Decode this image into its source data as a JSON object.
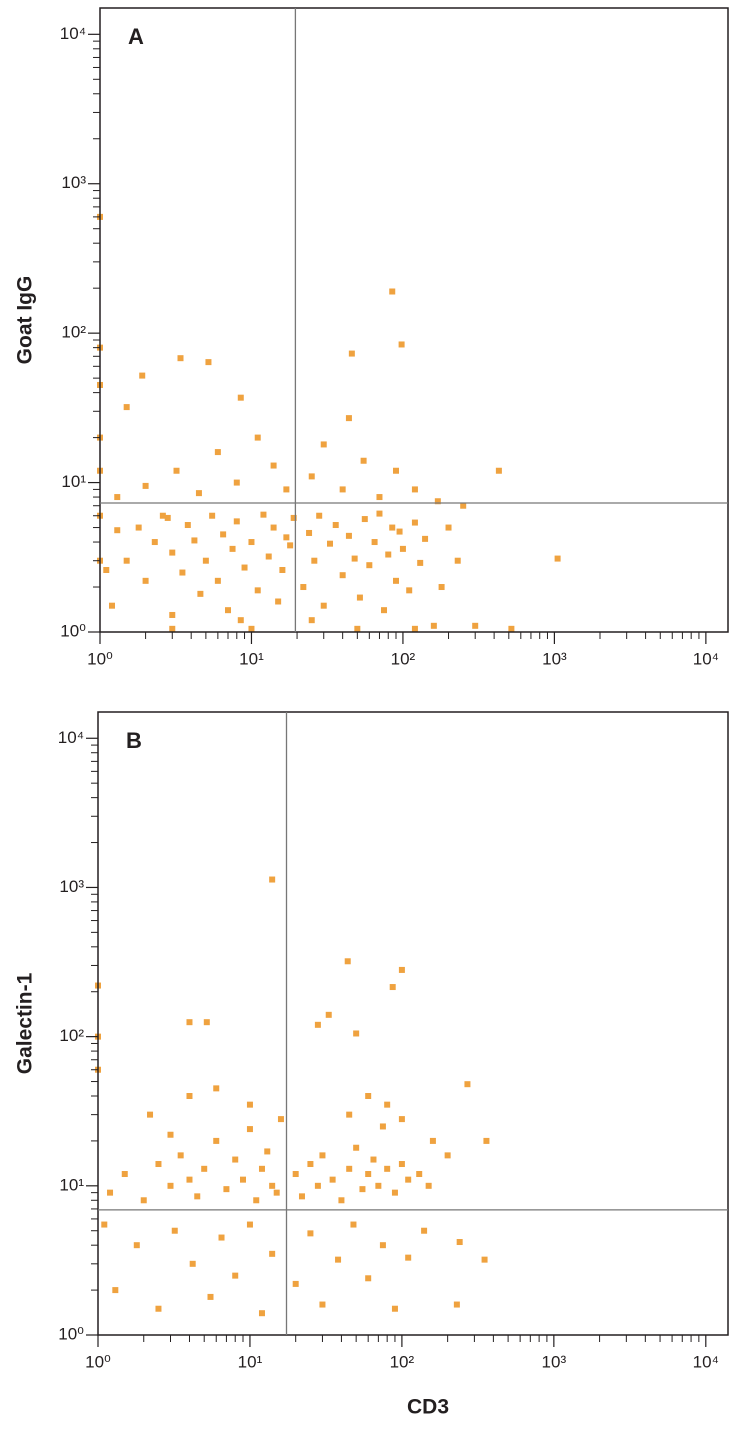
{
  "chart_data": [
    {
      "type": "scatter",
      "panel_label": "A",
      "y_label": "Goat IgG",
      "color": "#efa23f",
      "log_scale": true,
      "xlim": [
        1,
        14000
      ],
      "ylim": [
        1,
        15000
      ],
      "xticks": [
        {
          "value": 1,
          "label": "10⁰"
        },
        {
          "value": 10,
          "label": "10¹"
        },
        {
          "value": 100,
          "label": "10²"
        },
        {
          "value": 1000,
          "label": "10³"
        },
        {
          "value": 10000,
          "label": "10⁴"
        }
      ],
      "yticks": [
        {
          "value": 1,
          "label": "10⁰"
        },
        {
          "value": 10,
          "label": "10¹"
        },
        {
          "value": 100,
          "label": "10²"
        },
        {
          "value": 1000,
          "label": "10³"
        },
        {
          "value": 10000,
          "label": "10⁴"
        }
      ],
      "minor_ticks": [
        2,
        3,
        4,
        5,
        6,
        7,
        8,
        9,
        20,
        30,
        40,
        50,
        60,
        70,
        80,
        90,
        200,
        300,
        400,
        500,
        600,
        700,
        800,
        900,
        2000,
        3000,
        4000,
        5000,
        6000,
        7000,
        8000,
        9000
      ],
      "gates": {
        "x": 19.5,
        "y": 7.3
      },
      "x": [
        1.2,
        1.5,
        1.8,
        2,
        2.3,
        2.6,
        3,
        3,
        3.5,
        3.8,
        4.2,
        4.6,
        5,
        5.5,
        6,
        6.5,
        7,
        7.5,
        8,
        9,
        10,
        11,
        12,
        13,
        14,
        15,
        16,
        17,
        18,
        19,
        22,
        24,
        26,
        28,
        30,
        33,
        36,
        40,
        44,
        48,
        52,
        56,
        60,
        65,
        70,
        75,
        80,
        85,
        90,
        95,
        100,
        110,
        120,
        130,
        140,
        1.1,
        1.3,
        2.8,
        8.5,
        25,
        1.3,
        2,
        3.2,
        4.5,
        6,
        8,
        11,
        14,
        17,
        25,
        30,
        40,
        55,
        70,
        90,
        120,
        170,
        250,
        200,
        230,
        160,
        300,
        180,
        1,
        1,
        1.9,
        3.4,
        5.2,
        8.5,
        44,
        46,
        85,
        98,
        430,
        1050,
        520,
        1.5,
        1,
        3,
        10,
        50,
        120,
        1,
        1,
        1,
        1
      ],
      "y": [
        1.5,
        3,
        5,
        2.2,
        4,
        6,
        1.3,
        3.4,
        2.5,
        5.2,
        4.1,
        1.8,
        3,
        6,
        2.2,
        4.5,
        1.4,
        3.6,
        5.5,
        2.7,
        4,
        1.9,
        6.1,
        3.2,
        5,
        1.6,
        2.6,
        4.3,
        3.8,
        5.8,
        2,
        4.6,
        3,
        6,
        1.5,
        3.9,
        5.2,
        2.4,
        4.4,
        3.1,
        1.7,
        5.7,
        2.8,
        4,
        6.2,
        1.4,
        3.3,
        5,
        2.2,
        4.7,
        3.6,
        1.9,
        5.4,
        2.9,
        4.2,
        2.6,
        4.8,
        5.8,
        1.2,
        1.2,
        8,
        9.5,
        12,
        8.5,
        16,
        10,
        20,
        13,
        9,
        11,
        18,
        9,
        14,
        8,
        12,
        9,
        7.5,
        7,
        5,
        3,
        1.1,
        1.1,
        2,
        80,
        600,
        52,
        68,
        64,
        37,
        27,
        73,
        190,
        84,
        12,
        3.1,
        1.05,
        32,
        45,
        1.05,
        1.05,
        1.05,
        1.05,
        3,
        6,
        12,
        20
      ]
    },
    {
      "type": "scatter",
      "panel_label": "B",
      "y_label": "Galectin-1",
      "x_label": "CD3",
      "color": "#efa23f",
      "log_scale": true,
      "xlim": [
        1,
        14000
      ],
      "ylim": [
        1,
        15000
      ],
      "xticks": [
        {
          "value": 1,
          "label": "10⁰"
        },
        {
          "value": 10,
          "label": "10¹"
        },
        {
          "value": 100,
          "label": "10²"
        },
        {
          "value": 1000,
          "label": "10³"
        },
        {
          "value": 10000,
          "label": "10⁴"
        }
      ],
      "yticks": [
        {
          "value": 1,
          "label": "10⁰"
        },
        {
          "value": 10,
          "label": "10¹"
        },
        {
          "value": 100,
          "label": "10²"
        },
        {
          "value": 1000,
          "label": "10³"
        },
        {
          "value": 10000,
          "label": "10⁴"
        }
      ],
      "minor_ticks": [
        2,
        3,
        4,
        5,
        6,
        7,
        8,
        9,
        20,
        30,
        40,
        50,
        60,
        70,
        80,
        90,
        200,
        300,
        400,
        500,
        600,
        700,
        800,
        900,
        2000,
        3000,
        4000,
        5000,
        6000,
        7000,
        8000,
        9000
      ],
      "gates": {
        "x": 17.4,
        "y": 6.9
      },
      "x": [
        1.2,
        1.5,
        2,
        2.5,
        3,
        3.5,
        4,
        4.5,
        5,
        6,
        7,
        8,
        9,
        10,
        11,
        12,
        13,
        14,
        15,
        20,
        22,
        25,
        28,
        30,
        35,
        40,
        45,
        50,
        55,
        60,
        65,
        70,
        75,
        80,
        90,
        100,
        110,
        130,
        150,
        2.2,
        4,
        3,
        6,
        10,
        16,
        45,
        60,
        80,
        100,
        160,
        200,
        1.3,
        1.8,
        2.5,
        3.2,
        4.2,
        5.5,
        6.5,
        8,
        10,
        12,
        14,
        20,
        25,
        30,
        38,
        48,
        60,
        75,
        90,
        110,
        140,
        230,
        240,
        1.1,
        14,
        44,
        100,
        87,
        4,
        5.2,
        33,
        28,
        50,
        1,
        350,
        360,
        270,
        1,
        1
      ],
      "y": [
        9,
        12,
        8,
        14,
        10,
        16,
        11,
        8.5,
        13,
        20,
        9.5,
        15,
        11,
        24,
        8,
        13,
        17,
        10,
        9,
        12,
        8.5,
        14,
        10,
        16,
        11,
        8,
        13,
        18,
        9.5,
        12,
        15,
        10,
        25,
        13,
        9,
        14,
        11,
        12,
        10,
        30,
        40,
        22,
        45,
        35,
        28,
        30,
        40,
        35,
        28,
        20,
        16,
        2,
        4,
        1.5,
        5,
        3,
        1.8,
        4.5,
        2.5,
        5.5,
        1.4,
        3.5,
        2.2,
        4.8,
        1.6,
        3.2,
        5.5,
        2.4,
        4,
        1.5,
        3.3,
        5,
        1.6,
        4.2,
        5.5,
        1130,
        320,
        280,
        215,
        125,
        125,
        140,
        120,
        105,
        220,
        3.2,
        20,
        48,
        100,
        60
      ]
    }
  ]
}
